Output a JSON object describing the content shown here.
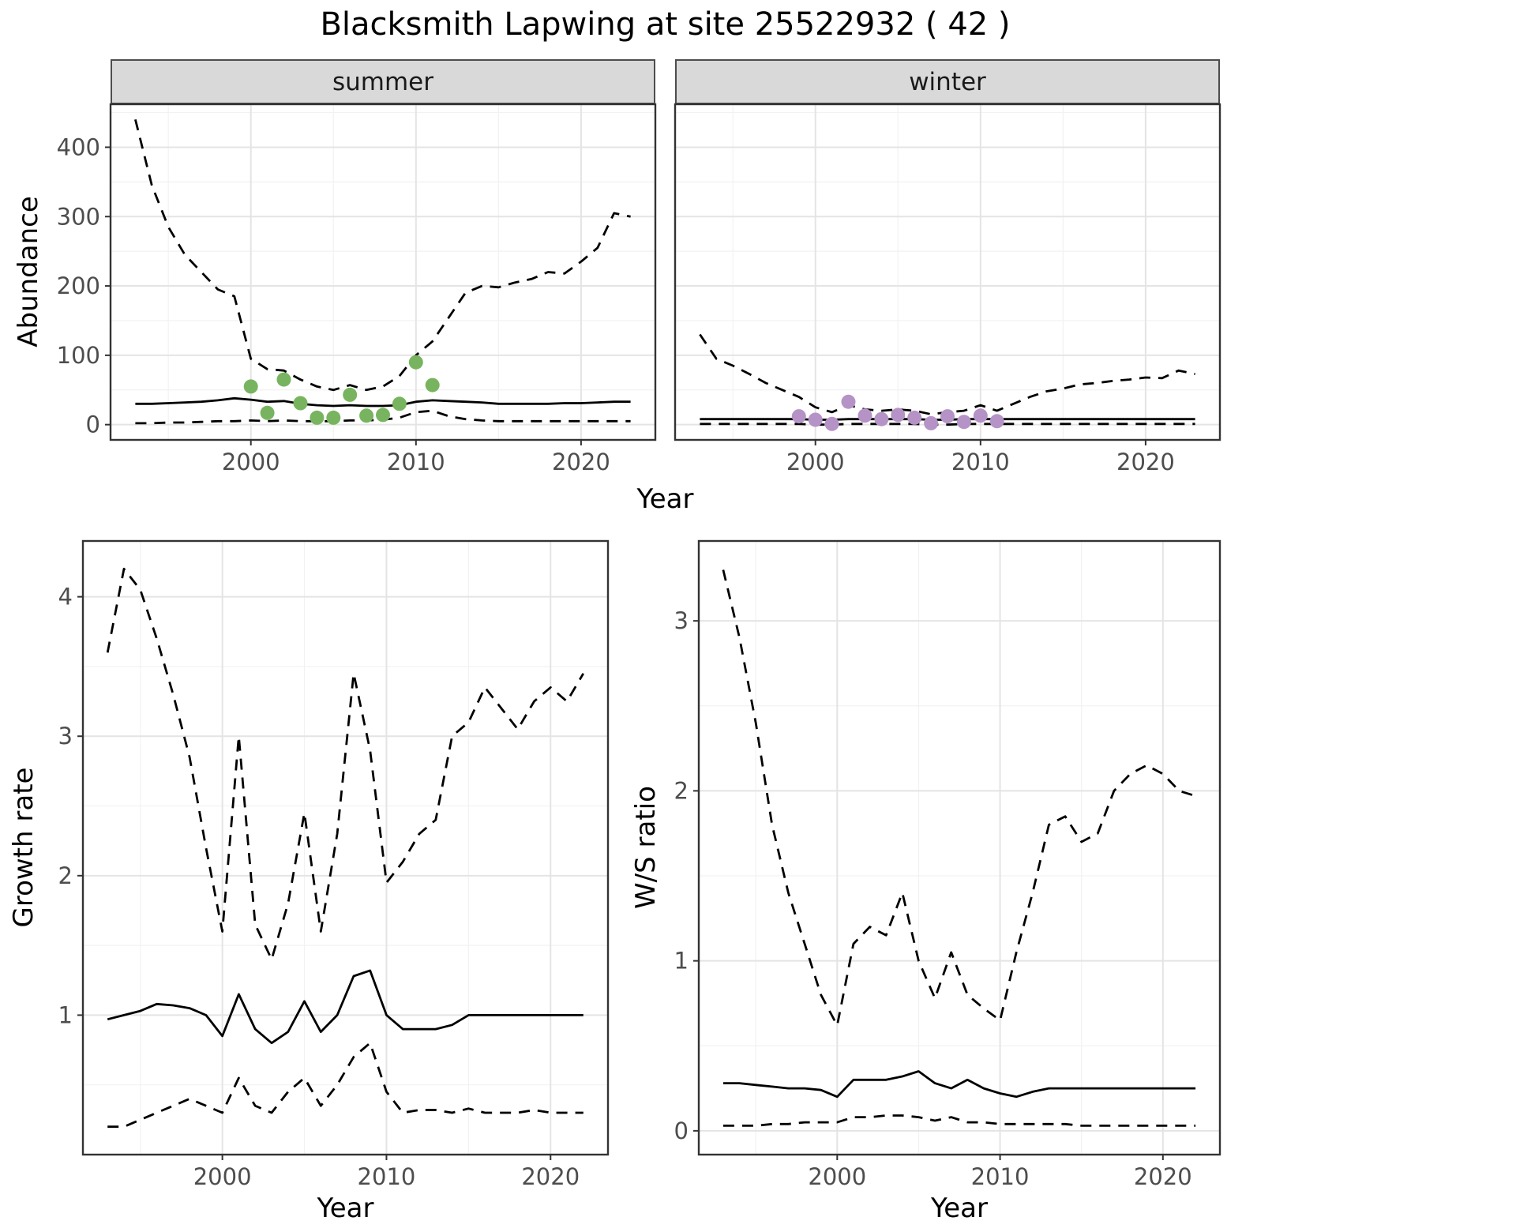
{
  "title": "Blacksmith Lapwing at site 25522932 ( 42 )",
  "axes": {
    "abundance": {
      "ylabel": "Abundance",
      "xlabel": "Year"
    },
    "growth": {
      "ylabel": "Growth rate",
      "xlabel": "Year"
    },
    "ws": {
      "ylabel": "W/S ratio",
      "xlabel": "Year"
    }
  },
  "facets": {
    "summer": "summer",
    "winter": "winter"
  },
  "colors": {
    "line": "#000000",
    "summer_points": "#78b45f",
    "winter_points": "#b593c6",
    "strip_bg": "#d9d9d9",
    "panel_border": "#333333",
    "grid_major": "#e4e4e4",
    "grid_minor": "#f2f2f2",
    "tick_text": "#4d4d4d",
    "text": "#1a1a1a"
  },
  "chart_data": [
    {
      "id": "summer-abundance",
      "type": "line",
      "facet": "summer",
      "title": "",
      "xlabel": "Year",
      "ylabel": "Abundance",
      "xlim": [
        1991.5,
        2024.5
      ],
      "ylim": [
        -22,
        462
      ],
      "x_ticks": [
        2000,
        2010,
        2020
      ],
      "y_ticks": [
        0,
        100,
        200,
        300,
        400
      ],
      "show_y_tick_labels": true,
      "x": [
        1993,
        1994,
        1995,
        1996,
        1997,
        1998,
        1999,
        2000,
        2001,
        2002,
        2003,
        2004,
        2005,
        2006,
        2007,
        2008,
        2009,
        2010,
        2011,
        2012,
        2013,
        2014,
        2015,
        2016,
        2017,
        2018,
        2019,
        2020,
        2021,
        2022,
        2023
      ],
      "series": [
        {
          "name": "upper_95ci",
          "style": "dashed",
          "values": [
            440,
            345,
            285,
            245,
            220,
            195,
            185,
            95,
            80,
            78,
            65,
            55,
            50,
            57,
            50,
            55,
            70,
            100,
            120,
            155,
            190,
            200,
            198,
            205,
            210,
            220,
            218,
            235,
            255,
            305,
            300
          ]
        },
        {
          "name": "median",
          "style": "solid",
          "values": [
            30,
            30,
            31,
            32,
            33,
            35,
            38,
            36,
            33,
            34,
            30,
            28,
            27,
            28,
            27,
            27,
            28,
            33,
            35,
            34,
            33,
            32,
            30,
            30,
            30,
            30,
            31,
            31,
            32,
            33,
            33
          ]
        },
        {
          "name": "lower_95ci",
          "style": "dashed",
          "values": [
            2,
            2,
            3,
            3,
            4,
            5,
            5,
            6,
            5,
            6,
            5,
            5,
            5,
            6,
            6,
            7,
            10,
            18,
            20,
            12,
            8,
            6,
            5,
            5,
            5,
            5,
            5,
            5,
            5,
            5,
            5
          ]
        }
      ],
      "points": {
        "name": "summer-observation",
        "color": "#78b45f",
        "x": [
          2000,
          2001,
          2002,
          2003,
          2004,
          2005,
          2006,
          2007,
          2008,
          2009,
          2010,
          2011
        ],
        "values": [
          55,
          17,
          65,
          31,
          10,
          10,
          43,
          13,
          14,
          30,
          90,
          57
        ]
      }
    },
    {
      "id": "winter-abundance",
      "type": "line",
      "facet": "winter",
      "title": "",
      "xlabel": "Year",
      "ylabel": "Abundance",
      "xlim": [
        1991.5,
        2024.5
      ],
      "ylim": [
        -22,
        462
      ],
      "x_ticks": [
        2000,
        2010,
        2020
      ],
      "y_ticks": [
        0,
        100,
        200,
        300,
        400
      ],
      "show_y_tick_labels": false,
      "x": [
        1993,
        1994,
        1995,
        1996,
        1997,
        1998,
        1999,
        2000,
        2001,
        2002,
        2003,
        2004,
        2005,
        2006,
        2007,
        2008,
        2009,
        2010,
        2011,
        2012,
        2013,
        2014,
        2015,
        2016,
        2017,
        2018,
        2019,
        2020,
        2021,
        2022,
        2023
      ],
      "series": [
        {
          "name": "upper_95ci",
          "style": "dashed",
          "values": [
            130,
            95,
            85,
            73,
            60,
            50,
            40,
            25,
            18,
            28,
            22,
            20,
            22,
            20,
            15,
            18,
            20,
            28,
            20,
            30,
            40,
            48,
            52,
            58,
            60,
            63,
            65,
            68,
            67,
            78,
            73
          ]
        },
        {
          "name": "median",
          "style": "solid",
          "values": [
            8,
            8,
            8,
            8,
            8,
            8,
            8,
            7,
            7,
            8,
            8,
            8,
            8,
            8,
            7,
            7,
            8,
            8,
            8,
            8,
            8,
            8,
            8,
            8,
            8,
            8,
            8,
            8,
            8,
            8,
            8
          ]
        },
        {
          "name": "lower_95ci",
          "style": "dashed",
          "values": [
            1,
            1,
            1,
            1,
            1,
            1,
            1,
            0,
            0,
            1,
            1,
            1,
            1,
            1,
            0,
            0,
            1,
            1,
            1,
            1,
            1,
            1,
            1,
            1,
            1,
            1,
            1,
            1,
            1,
            1,
            1
          ]
        }
      ],
      "points": {
        "name": "winter-observation",
        "color": "#b593c6",
        "x": [
          1999,
          2000,
          2001,
          2002,
          2003,
          2004,
          2005,
          2006,
          2007,
          2008,
          2009,
          2010,
          2011
        ],
        "values": [
          12,
          7,
          1,
          33,
          13,
          8,
          14,
          10,
          2,
          12,
          4,
          13,
          5
        ]
      }
    },
    {
      "id": "growth-rate",
      "type": "line",
      "facet": "",
      "title": "",
      "xlabel": "Year",
      "ylabel": "Growth rate",
      "xlim": [
        1991.5,
        2023.5
      ],
      "ylim": [
        0,
        4.4
      ],
      "x_ticks": [
        2000,
        2010,
        2020
      ],
      "y_ticks": [
        1,
        2,
        3,
        4
      ],
      "show_y_tick_labels": true,
      "x": [
        1993,
        1994,
        1995,
        1996,
        1997,
        1998,
        1999,
        2000,
        2001,
        2002,
        2003,
        2004,
        2005,
        2006,
        2007,
        2008,
        2009,
        2010,
        2011,
        2012,
        2013,
        2014,
        2015,
        2016,
        2017,
        2018,
        2019,
        2020,
        2021,
        2022
      ],
      "series": [
        {
          "name": "upper_95ci",
          "style": "dashed",
          "values": [
            3.6,
            4.2,
            4.05,
            3.7,
            3.3,
            2.85,
            2.2,
            1.6,
            3.0,
            1.65,
            1.4,
            1.8,
            2.45,
            1.6,
            2.3,
            3.45,
            2.9,
            1.95,
            2.1,
            2.3,
            2.4,
            3.0,
            3.1,
            3.35,
            3.2,
            3.05,
            3.25,
            3.35,
            3.25,
            3.45
          ]
        },
        {
          "name": "median",
          "style": "solid",
          "values": [
            0.97,
            1.0,
            1.03,
            1.08,
            1.07,
            1.05,
            1.0,
            0.85,
            1.15,
            0.9,
            0.8,
            0.88,
            1.1,
            0.88,
            1.0,
            1.28,
            1.32,
            1.0,
            0.9,
            0.9,
            0.9,
            0.93,
            1.0,
            1.0,
            1.0,
            1.0,
            1.0,
            1.0,
            1.0,
            1.0
          ]
        },
        {
          "name": "lower_95ci",
          "style": "dashed",
          "values": [
            0.2,
            0.2,
            0.25,
            0.3,
            0.35,
            0.4,
            0.35,
            0.3,
            0.55,
            0.35,
            0.3,
            0.45,
            0.55,
            0.35,
            0.5,
            0.7,
            0.8,
            0.45,
            0.3,
            0.32,
            0.32,
            0.3,
            0.33,
            0.3,
            0.3,
            0.3,
            0.32,
            0.3,
            0.3,
            0.3
          ]
        }
      ]
    },
    {
      "id": "ws-ratio",
      "type": "line",
      "facet": "",
      "title": "",
      "xlabel": "Year",
      "ylabel": "W/S ratio",
      "xlim": [
        1991.5,
        2023.5
      ],
      "ylim": [
        -0.14,
        3.47
      ],
      "x_ticks": [
        2000,
        2010,
        2020
      ],
      "y_ticks": [
        0,
        1,
        2,
        3
      ],
      "show_y_tick_labels": true,
      "x": [
        1993,
        1994,
        1995,
        1996,
        1997,
        1998,
        1999,
        2000,
        2001,
        2002,
        2003,
        2004,
        2005,
        2006,
        2007,
        2008,
        2009,
        2010,
        2011,
        2012,
        2013,
        2014,
        2015,
        2016,
        2017,
        2018,
        2019,
        2020,
        2021,
        2022
      ],
      "series": [
        {
          "name": "upper_95ci",
          "style": "dashed",
          "values": [
            3.3,
            2.9,
            2.4,
            1.8,
            1.4,
            1.1,
            0.8,
            0.62,
            1.1,
            1.2,
            1.15,
            1.4,
            1.0,
            0.78,
            1.05,
            0.8,
            0.72,
            0.65,
            1.05,
            1.4,
            1.8,
            1.85,
            1.7,
            1.75,
            2.0,
            2.1,
            2.15,
            2.1,
            2.0,
            1.97
          ]
        },
        {
          "name": "median",
          "style": "solid",
          "values": [
            0.28,
            0.28,
            0.27,
            0.26,
            0.25,
            0.25,
            0.24,
            0.2,
            0.3,
            0.3,
            0.3,
            0.32,
            0.35,
            0.28,
            0.25,
            0.3,
            0.25,
            0.22,
            0.2,
            0.23,
            0.25,
            0.25,
            0.25,
            0.25,
            0.25,
            0.25,
            0.25,
            0.25,
            0.25,
            0.25
          ]
        },
        {
          "name": "lower_95ci",
          "style": "dashed",
          "values": [
            0.03,
            0.03,
            0.03,
            0.04,
            0.04,
            0.05,
            0.05,
            0.05,
            0.08,
            0.08,
            0.09,
            0.09,
            0.08,
            0.06,
            0.08,
            0.05,
            0.05,
            0.04,
            0.04,
            0.04,
            0.04,
            0.04,
            0.03,
            0.03,
            0.03,
            0.03,
            0.03,
            0.03,
            0.03,
            0.03
          ]
        }
      ]
    }
  ]
}
